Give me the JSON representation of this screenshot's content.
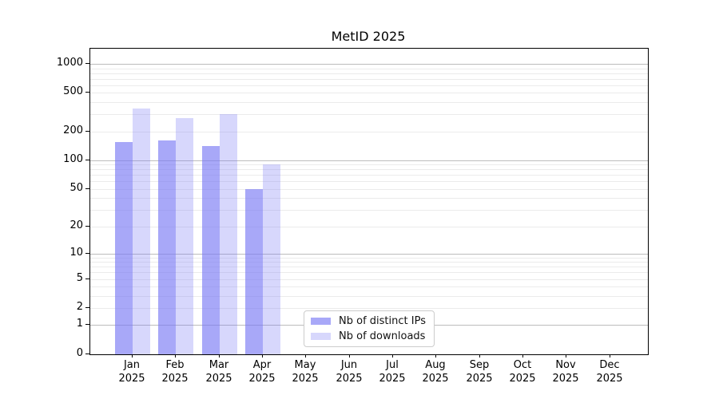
{
  "title": "MetID 2025",
  "chart_data": {
    "type": "bar",
    "title": "MetID 2025",
    "scale": "log1p",
    "grid": "horizontal",
    "legend_position": "lower center",
    "categories": [
      "Jan",
      "Feb",
      "Mar",
      "Apr",
      "May",
      "Jun",
      "Jul",
      "Aug",
      "Sep",
      "Oct",
      "Nov",
      "Dec"
    ],
    "category_year": "2025",
    "series": [
      {
        "name": "Nb of distinct IPs",
        "values": [
          155,
          160,
          142,
          50,
          null,
          null,
          null,
          null,
          null,
          null,
          null,
          null
        ],
        "color": "rgba(122,122,245,0.65)"
      },
      {
        "name": "Nb of downloads",
        "values": [
          345,
          275,
          300,
          90,
          null,
          null,
          null,
          null,
          null,
          null,
          null,
          null
        ],
        "color": "rgba(122,122,245,0.30)"
      }
    ],
    "y_major_ticks": [
      0,
      1,
      2,
      5,
      10,
      20,
      50,
      100,
      200,
      500,
      1000
    ],
    "y_decade_lines": [
      1,
      10,
      100,
      1000
    ],
    "y_minor_lines": [
      2,
      3,
      4,
      5,
      6,
      7,
      8,
      9,
      20,
      30,
      40,
      50,
      60,
      70,
      80,
      90,
      200,
      300,
      400,
      500,
      600,
      700,
      800,
      900
    ],
    "ylim": [
      0,
      1435
    ]
  },
  "colors": {
    "bar_base": "#7a7af5",
    "decade_grid": "#bcbcbc",
    "minor_grid": "#ebebeb",
    "spine": "#000000",
    "legend_border": "#cccccc",
    "background": "#ffffff"
  }
}
